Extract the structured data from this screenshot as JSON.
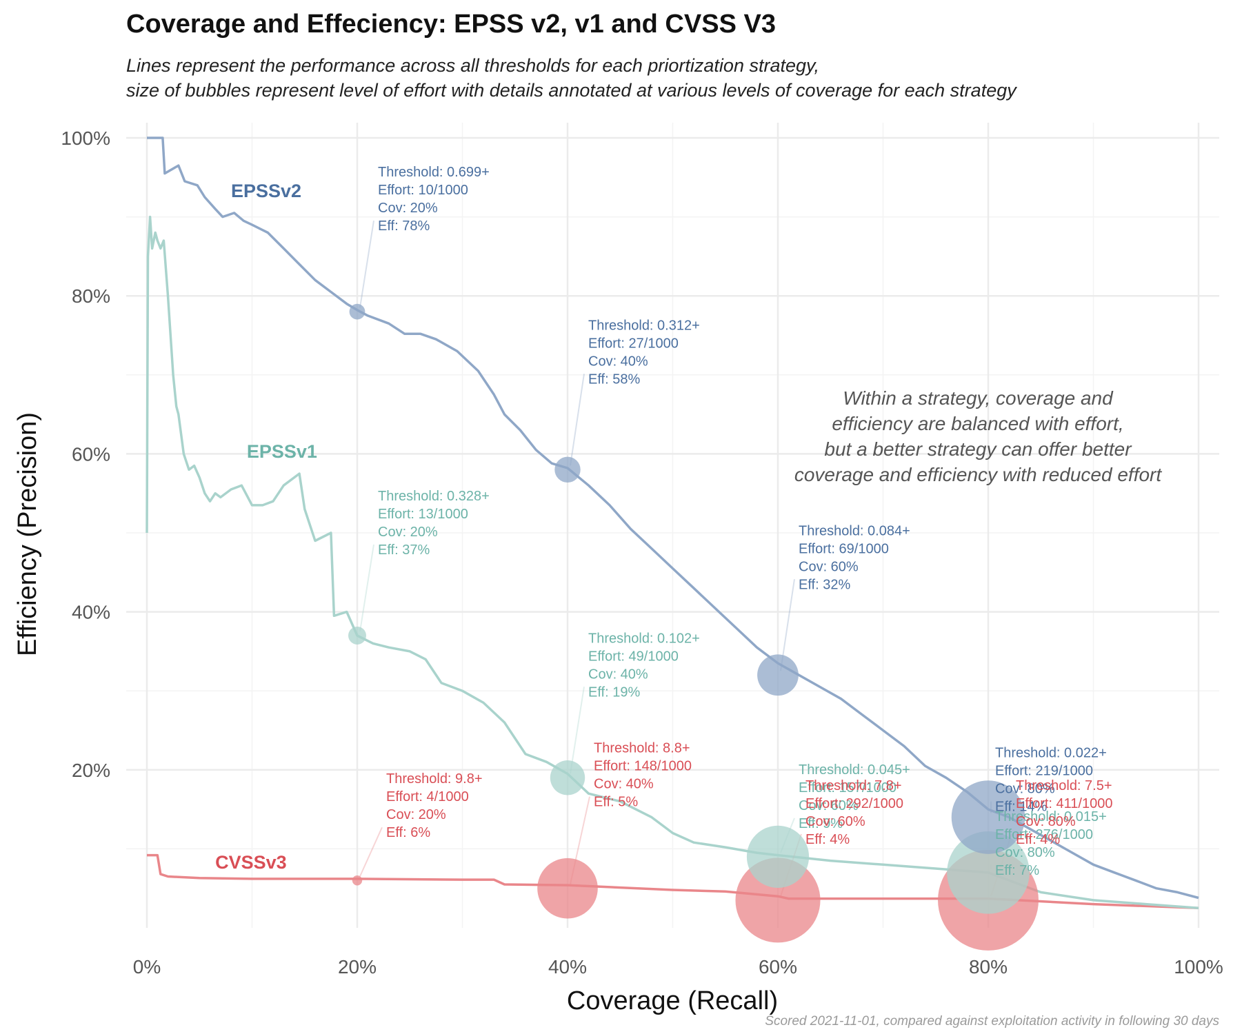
{
  "title": "Coverage and Effeciency: EPSS v2, v1 and CVSS V3",
  "subtitle": [
    "Lines represent the performance across all thresholds for each priortization strategy,",
    "size of bubbles represent level of effort with details annotated at various levels of coverage for each strategy"
  ],
  "caption": "Scored 2021-11-01, compared against exploitation activity in following 30 days",
  "note": [
    "Within a strategy, coverage and",
    "efficiency are balanced with effort,",
    "but a better strategy can offer better",
    "coverage and efficiency with reduced effort"
  ],
  "chart_data": {
    "type": "line",
    "title": "Coverage and Effeciency: EPSS v2, v1 and CVSS V3",
    "xlabel": "Coverage (Recall)",
    "ylabel": "Efficiency (Precision)",
    "xlim": [
      0,
      1
    ],
    "ylim": [
      0,
      1
    ],
    "x_ticks": [
      "0%",
      "20%",
      "40%",
      "60%",
      "80%",
      "100%"
    ],
    "y_ticks": [
      "20%",
      "40%",
      "60%",
      "80%",
      "100%"
    ],
    "grid": true,
    "colors": {
      "EPSSv2": "#8fa7c7",
      "EPSSv1": "#a9d3cc",
      "CVSSv3": "#e9868a",
      "EPSSv2_text": "#4a6f9f",
      "EPSSv1_text": "#6cb3a8",
      "CVSSv3_text": "#d94e55"
    },
    "series": [
      {
        "name": "EPSSv2",
        "x": [
          0,
          0.015,
          0.017,
          0.03,
          0.036,
          0.048,
          0.055,
          0.065,
          0.072,
          0.083,
          0.092,
          0.1,
          0.115,
          0.13,
          0.145,
          0.16,
          0.175,
          0.19,
          0.2,
          0.21,
          0.23,
          0.245,
          0.26,
          0.275,
          0.295,
          0.315,
          0.33,
          0.34,
          0.355,
          0.37,
          0.385,
          0.4,
          0.42,
          0.44,
          0.46,
          0.48,
          0.5,
          0.52,
          0.54,
          0.56,
          0.58,
          0.6,
          0.62,
          0.64,
          0.66,
          0.68,
          0.7,
          0.72,
          0.74,
          0.76,
          0.78,
          0.8,
          0.82,
          0.84,
          0.86,
          0.88,
          0.9,
          0.92,
          0.94,
          0.96,
          0.98,
          1.0
        ],
        "y": [
          1.0,
          1.0,
          0.955,
          0.965,
          0.945,
          0.94,
          0.925,
          0.91,
          0.9,
          0.905,
          0.895,
          0.89,
          0.88,
          0.86,
          0.84,
          0.82,
          0.805,
          0.79,
          0.782,
          0.775,
          0.765,
          0.752,
          0.752,
          0.745,
          0.73,
          0.705,
          0.675,
          0.65,
          0.63,
          0.605,
          0.588,
          0.582,
          0.56,
          0.535,
          0.505,
          0.48,
          0.455,
          0.43,
          0.405,
          0.38,
          0.355,
          0.335,
          0.32,
          0.305,
          0.29,
          0.27,
          0.25,
          0.23,
          0.205,
          0.19,
          0.172,
          0.15,
          0.14,
          0.125,
          0.11,
          0.095,
          0.08,
          0.07,
          0.06,
          0.05,
          0.045,
          0.038
        ]
      },
      {
        "name": "EPSSv1",
        "x": [
          0,
          0.001,
          0.003,
          0.005,
          0.008,
          0.01,
          0.013,
          0.016,
          0.02,
          0.025,
          0.028,
          0.03,
          0.035,
          0.04,
          0.045,
          0.05,
          0.055,
          0.06,
          0.065,
          0.07,
          0.08,
          0.09,
          0.1,
          0.11,
          0.12,
          0.13,
          0.145,
          0.15,
          0.16,
          0.175,
          0.178,
          0.19,
          0.2,
          0.215,
          0.23,
          0.25,
          0.265,
          0.28,
          0.3,
          0.32,
          0.34,
          0.36,
          0.38,
          0.4,
          0.42,
          0.45,
          0.48,
          0.5,
          0.52,
          0.55,
          0.58,
          0.6,
          0.65,
          0.7,
          0.75,
          0.8,
          0.85,
          0.9,
          0.95,
          1.0
        ],
        "y": [
          0.5,
          0.85,
          0.9,
          0.86,
          0.88,
          0.87,
          0.86,
          0.87,
          0.8,
          0.7,
          0.66,
          0.65,
          0.6,
          0.58,
          0.585,
          0.57,
          0.55,
          0.54,
          0.55,
          0.545,
          0.555,
          0.56,
          0.535,
          0.535,
          0.54,
          0.56,
          0.575,
          0.53,
          0.49,
          0.5,
          0.395,
          0.4,
          0.37,
          0.36,
          0.355,
          0.35,
          0.34,
          0.31,
          0.3,
          0.285,
          0.26,
          0.22,
          0.21,
          0.195,
          0.17,
          0.16,
          0.14,
          0.12,
          0.108,
          0.102,
          0.095,
          0.092,
          0.085,
          0.08,
          0.075,
          0.07,
          0.045,
          0.035,
          0.03,
          0.025
        ]
      },
      {
        "name": "CVSSv3",
        "x": [
          0,
          0.01,
          0.013,
          0.02,
          0.05,
          0.1,
          0.2,
          0.3,
          0.33,
          0.34,
          0.4,
          0.5,
          0.55,
          0.6,
          0.61,
          0.7,
          0.8,
          0.9,
          1.0
        ],
        "y": [
          0.092,
          0.092,
          0.068,
          0.065,
          0.063,
          0.062,
          0.062,
          0.061,
          0.061,
          0.055,
          0.054,
          0.048,
          0.046,
          0.04,
          0.037,
          0.037,
          0.037,
          0.03,
          0.025
        ]
      }
    ],
    "bubbles": [
      {
        "series": "EPSSv2",
        "x": 0.2,
        "y": 0.78,
        "threshold": "0.699+",
        "effort": 10,
        "cov": "20%",
        "eff": "78%"
      },
      {
        "series": "EPSSv2",
        "x": 0.4,
        "y": 0.58,
        "threshold": "0.312+",
        "effort": 27,
        "cov": "40%",
        "eff": "58%"
      },
      {
        "series": "EPSSv2",
        "x": 0.6,
        "y": 0.32,
        "threshold": "0.084+",
        "effort": 69,
        "cov": "60%",
        "eff": "32%"
      },
      {
        "series": "EPSSv2",
        "x": 0.8,
        "y": 0.14,
        "threshold": "0.022+",
        "effort": 219,
        "cov": "80%",
        "eff": "14%"
      },
      {
        "series": "EPSSv1",
        "x": 0.2,
        "y": 0.37,
        "threshold": "0.328+",
        "effort": 13,
        "cov": "20%",
        "eff": "37%"
      },
      {
        "series": "EPSSv1",
        "x": 0.4,
        "y": 0.19,
        "threshold": "0.102+",
        "effort": 49,
        "cov": "40%",
        "eff": "19%"
      },
      {
        "series": "EPSSv1",
        "x": 0.6,
        "y": 0.09,
        "threshold": "0.045+",
        "effort": 157,
        "cov": "60%",
        "eff": "9%"
      },
      {
        "series": "EPSSv1",
        "x": 0.8,
        "y": 0.07,
        "threshold": "0.015+",
        "effort": 276,
        "cov": "80%",
        "eff": "7%"
      },
      {
        "series": "CVSSv3",
        "x": 0.2,
        "y": 0.06,
        "threshold": "9.8+",
        "effort": 4,
        "cov": "20%",
        "eff": "6%"
      },
      {
        "series": "CVSSv3",
        "x": 0.4,
        "y": 0.05,
        "threshold": "8.8+",
        "effort": 148,
        "cov": "40%",
        "eff": "5%"
      },
      {
        "series": "CVSSv3",
        "x": 0.6,
        "y": 0.035,
        "threshold": "7.8+",
        "effort": 292,
        "cov": "60%",
        "eff": "4%"
      },
      {
        "series": "CVSSv3",
        "x": 0.8,
        "y": 0.035,
        "threshold": "7.5+",
        "effort": 411,
        "cov": "80%",
        "eff": "4%"
      }
    ],
    "annotation_text": [
      {
        "series": "EPSSv2",
        "lines": [
          "Threshold: 0.699+",
          "Effort: 10/1000",
          "Cov: 20%",
          "Eff: 78%"
        ]
      },
      {
        "series": "EPSSv2",
        "lines": [
          "Threshold: 0.312+",
          "Effort: 27/1000",
          "Cov: 40%",
          "Eff: 58%"
        ]
      },
      {
        "series": "EPSSv2",
        "lines": [
          "Threshold: 0.084+",
          "Effort: 69/1000",
          "Cov: 60%",
          "Eff: 32%"
        ]
      },
      {
        "series": "EPSSv2",
        "lines": [
          "Threshold: 0.022+",
          "Effort: 219/1000",
          "Cov: 80%",
          "Eff: 14%"
        ]
      },
      {
        "series": "EPSSv1",
        "lines": [
          "Threshold: 0.328+",
          "Effort: 13/1000",
          "Cov: 20%",
          "Eff: 37%"
        ]
      },
      {
        "series": "EPSSv1",
        "lines": [
          "Threshold: 0.102+",
          "Effort: 49/1000",
          "Cov: 40%",
          "Eff: 19%"
        ]
      },
      {
        "series": "EPSSv1",
        "lines": [
          "Threshold: 0.045+",
          "Effort: 157/1000",
          "Cov: 60%",
          "Eff: 9%"
        ]
      },
      {
        "series": "EPSSv1",
        "lines": [
          "Threshold: 0.015+",
          "Effort: 276/1000",
          "Cov: 80%",
          "Eff: 7%"
        ]
      },
      {
        "series": "CVSSv3",
        "lines": [
          "Threshold: 9.8+",
          "Effort: 4/1000",
          "Cov: 20%",
          "Eff: 6%"
        ]
      },
      {
        "series": "CVSSv3",
        "lines": [
          "Threshold: 8.8+",
          "Effort: 148/1000",
          "Cov: 40%",
          "Eff: 5%"
        ]
      },
      {
        "series": "CVSSv3",
        "lines": [
          "Threshold: 7.8+",
          "Effort: 292/1000",
          "Cov: 60%",
          "Eff: 4%"
        ]
      },
      {
        "series": "CVSSv3",
        "lines": [
          "Threshold: 7.5+",
          "Effort: 411/1000",
          "Cov: 80%",
          "Eff: 4%"
        ]
      }
    ],
    "series_labels": [
      {
        "series": "EPSSv2",
        "text": "EPSSv2"
      },
      {
        "series": "EPSSv1",
        "text": "EPSSv1"
      },
      {
        "series": "CVSSv3",
        "text": "CVSSv3"
      }
    ]
  }
}
